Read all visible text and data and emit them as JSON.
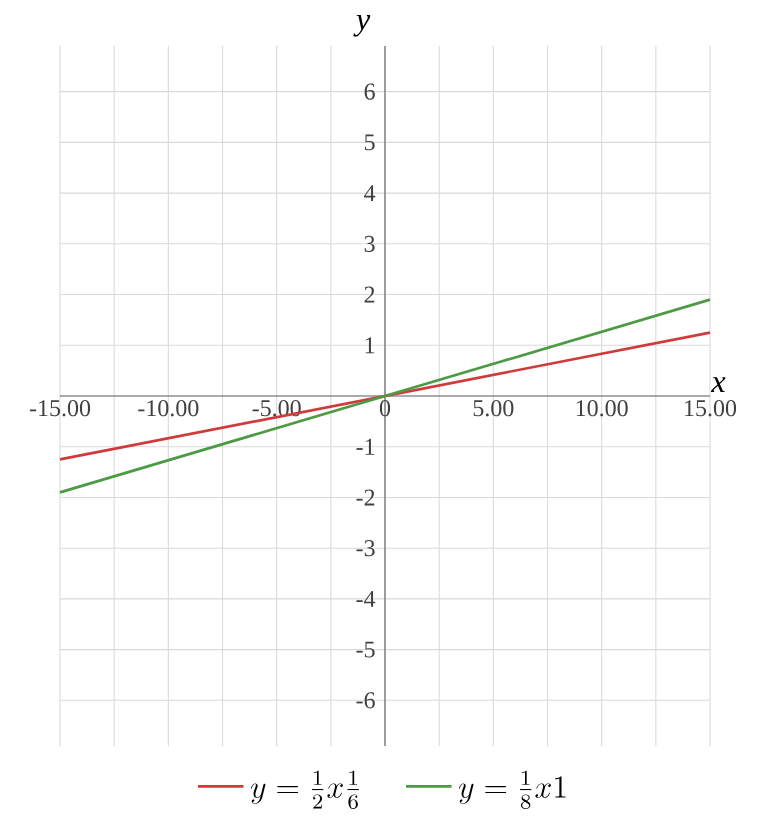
{
  "chart_data": {
    "type": "line",
    "xlabel": "x",
    "ylabel": "y",
    "x": [
      -15,
      15
    ],
    "series": [
      {
        "name": "y=\\frac{1}{2}x\\frac{1}{6}",
        "color": "#d03a3a",
        "values": [
          -1.25,
          1.25
        ]
      },
      {
        "name": "y=\\frac{1}{8}x1",
        "color": "#4c9a44",
        "values": [
          -1.9,
          1.9
        ]
      }
    ],
    "xlim": [
      -15,
      15
    ],
    "ylim": [
      -6.9,
      6.9
    ],
    "xticks": [
      {
        "value": -15,
        "label": "-15.00"
      },
      {
        "value": -12.5,
        "label": null
      },
      {
        "value": -10,
        "label": "-10.00"
      },
      {
        "value": -7.5,
        "label": null
      },
      {
        "value": -5,
        "label": "-5.00"
      },
      {
        "value": -2.5,
        "label": null
      },
      {
        "value": 0,
        "label": "0"
      },
      {
        "value": 2.5,
        "label": null
      },
      {
        "value": 5,
        "label": "5.00"
      },
      {
        "value": 7.5,
        "label": null
      },
      {
        "value": 10,
        "label": "10.00"
      },
      {
        "value": 12.5,
        "label": null
      },
      {
        "value": 15,
        "label": "15.00"
      }
    ],
    "yticks": [
      -6,
      -5,
      -4,
      -3,
      -2,
      -1,
      1,
      2,
      3,
      4,
      5,
      6
    ],
    "grid": true,
    "legend": "bottom"
  }
}
